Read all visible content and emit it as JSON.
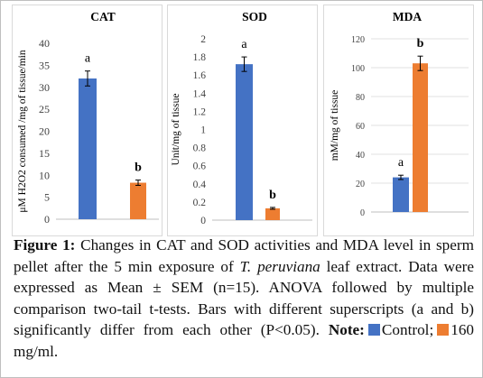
{
  "colors": {
    "control": "#4472C4",
    "treated": "#ED7D31",
    "grid": "#d9d9d9",
    "axis": "#bfbfbf",
    "tick_text": "#404040"
  },
  "chart_data": [
    {
      "id": "cat",
      "type": "bar",
      "title": "CAT",
      "ylabel": "μM H2O2 consumed /mg of tissue/min",
      "ylim": [
        0,
        40
      ],
      "yticks": [
        0,
        5,
        10,
        15,
        20,
        25,
        30,
        35,
        40
      ],
      "grid": false,
      "series": [
        {
          "name": "Control",
          "values": [
            32
          ],
          "errors": [
            1.7
          ],
          "superscripts": [
            "a"
          ]
        },
        {
          "name": "160 mg/ml",
          "values": [
            8.3
          ],
          "errors": [
            0.6
          ],
          "superscripts": [
            "b"
          ]
        }
      ]
    },
    {
      "id": "sod",
      "type": "bar",
      "title": "SOD",
      "ylabel": "Unit/mg of tissue",
      "ylim": [
        0,
        2
      ],
      "yticks": [
        "0",
        "0.2",
        "0.4",
        "0.6",
        "0.8",
        "1",
        "1.2",
        "1.4",
        "1.6",
        "1.8",
        "2"
      ],
      "grid": false,
      "series": [
        {
          "name": "Control",
          "values": [
            1.72
          ],
          "errors": [
            0.08
          ],
          "superscripts": [
            "a"
          ]
        },
        {
          "name": "160 mg/ml",
          "values": [
            0.13
          ],
          "errors": [
            0.01
          ],
          "superscripts": [
            "b"
          ]
        }
      ]
    },
    {
      "id": "mda",
      "type": "bar",
      "title": "MDA",
      "ylabel": "mM/mg of tissue",
      "ylim": [
        0,
        120
      ],
      "yticks": [
        0,
        20,
        40,
        60,
        80,
        100,
        120
      ],
      "grid": true,
      "series": [
        {
          "name": "Control",
          "values": [
            24
          ],
          "errors": [
            1.5
          ],
          "superscripts": [
            "a"
          ]
        },
        {
          "name": "160 mg/ml",
          "values": [
            103
          ],
          "errors": [
            5
          ],
          "superscripts": [
            "b"
          ]
        }
      ]
    }
  ],
  "caption": {
    "label": "Figure 1:",
    "text_1": " Changes in CAT and SOD activities and MDA level in sperm pellet after the 5 min exposure of ",
    "species": "T. peruviana",
    "text_2": " leaf extract. Data were expressed as Mean ± SEM (n=15). ANOVA followed by multiple comparison two-tail t-tests. Bars with different superscripts (a and b) significantly differ from each other (P<0.05). ",
    "note_label": "Note:",
    "legend_control": "Control;",
    "legend_treated": "160 mg/ml."
  }
}
